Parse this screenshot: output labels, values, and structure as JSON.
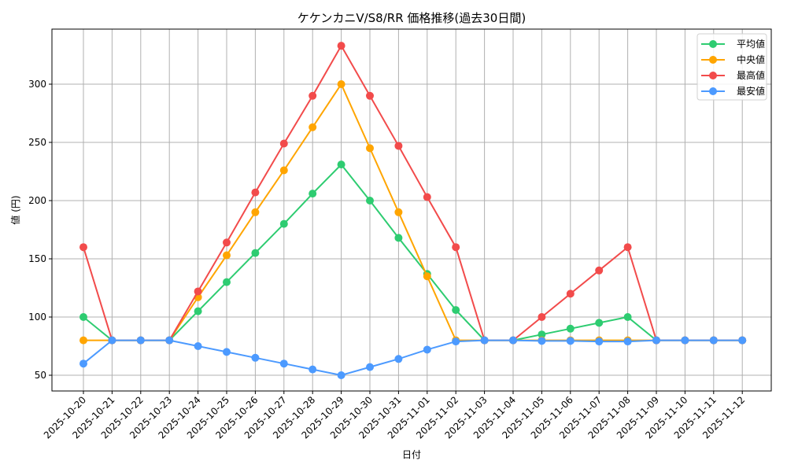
{
  "chart_data": {
    "type": "line",
    "title": "ケケンカニV/S8/RR 価格推移(過去30日間)",
    "xlabel": "日付",
    "ylabel": "値 (円)",
    "ylim": [
      35,
      345
    ],
    "yticks": [
      50,
      100,
      150,
      200,
      250,
      300
    ],
    "grid": true,
    "legend_position": "upper right",
    "categories": [
      "2025-10-20",
      "2025-10-21",
      "2025-10-22",
      "2025-10-23",
      "2025-10-24",
      "2025-10-25",
      "2025-10-26",
      "2025-10-27",
      "2025-10-28",
      "2025-10-29",
      "2025-10-30",
      "2025-10-31",
      "2025-11-01",
      "2025-11-02",
      "2025-11-03",
      "2025-11-04",
      "2025-11-05",
      "2025-11-06",
      "2025-11-07",
      "2025-11-08",
      "2025-11-09",
      "2025-11-10",
      "2025-11-11",
      "2025-11-12"
    ],
    "series": [
      {
        "name": "平均値",
        "color": "#2ecc71",
        "values": [
          100,
          80,
          80,
          80,
          105,
          130,
          155,
          180,
          206,
          231,
          200,
          168,
          137,
          106,
          80,
          80,
          85,
          90,
          95,
          100,
          80,
          80,
          80,
          80
        ]
      },
      {
        "name": "中央値",
        "color": "#ffa500",
        "values": [
          80,
          80,
          80,
          80,
          117,
          153,
          190,
          226,
          263,
          300,
          245,
          190,
          135,
          80,
          80,
          80,
          80,
          80,
          80,
          80,
          80,
          80,
          80,
          80
        ]
      },
      {
        "name": "最高値",
        "color": "#f24b4b",
        "values": [
          160,
          80,
          80,
          80,
          122,
          164,
          207,
          249,
          290,
          333,
          290,
          247,
          203,
          160,
          80,
          80,
          100,
          120,
          140,
          160,
          80,
          80,
          80,
          80
        ]
      },
      {
        "name": "最安値",
        "color": "#4c9aff",
        "values": [
          60,
          80,
          80,
          80,
          75,
          70,
          65,
          60,
          55,
          50,
          57,
          64,
          72,
          79,
          80,
          80,
          79.5,
          79.5,
          79,
          79,
          80,
          80,
          80,
          80
        ]
      }
    ]
  }
}
